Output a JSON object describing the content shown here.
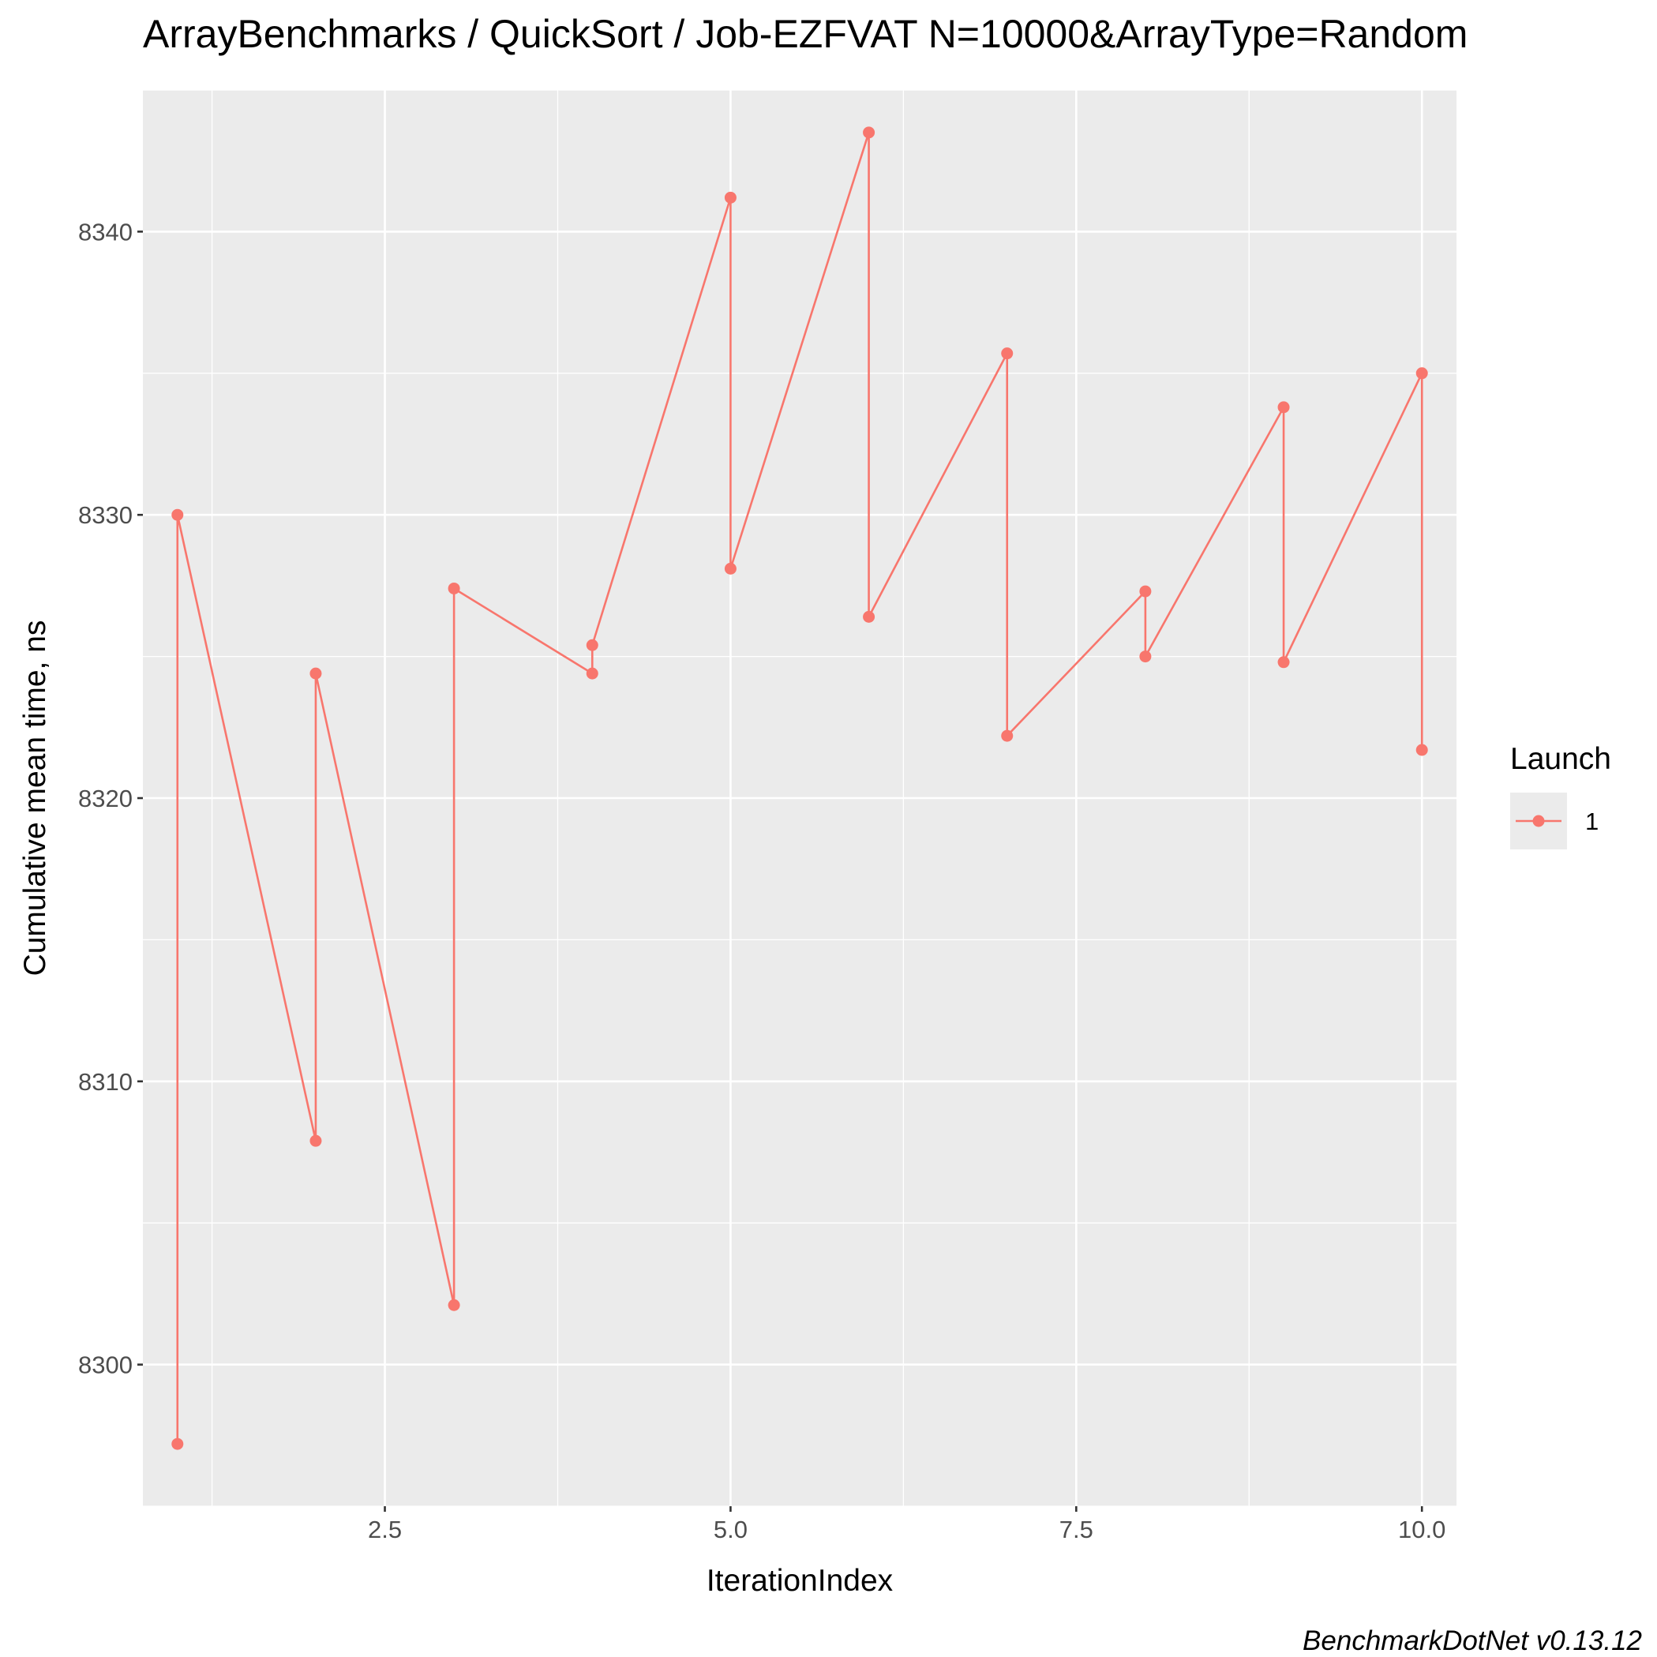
{
  "chart_data": {
    "type": "line",
    "title": "ArrayBenchmarks / QuickSort / Job-EZFVAT N=10000&ArrayType=Random",
    "xlabel": "IterationIndex",
    "ylabel": "Cumulative mean time, ns",
    "caption": "BenchmarkDotNet v0.13.12",
    "xlim": [
      0.75,
      10.25
    ],
    "ylim": [
      8295,
      8345
    ],
    "x_ticks": [
      2.5,
      5.0,
      7.5,
      10.0
    ],
    "x_tick_labels": [
      "2.5",
      "5.0",
      "7.5",
      "10.0"
    ],
    "y_ticks": [
      8300,
      8310,
      8320,
      8330,
      8340
    ],
    "y_tick_labels": [
      "8300",
      "8310",
      "8320",
      "8330",
      "8340"
    ],
    "grid": true,
    "legend": {
      "title": "Launch",
      "position": "right"
    },
    "series": [
      {
        "name": "1",
        "color": "#F8766D",
        "points": [
          [
            1,
            8297.2
          ],
          [
            1,
            8330.0
          ],
          [
            2,
            8307.9
          ],
          [
            2,
            8324.4
          ],
          [
            3,
            8302.1
          ],
          [
            3,
            8327.4
          ],
          [
            4,
            8324.4
          ],
          [
            4,
            8325.4
          ],
          [
            5,
            8341.2
          ],
          [
            5,
            8328.1
          ],
          [
            6,
            8343.5
          ],
          [
            6,
            8326.4
          ],
          [
            7,
            8335.7
          ],
          [
            7,
            8322.2
          ],
          [
            8,
            8327.3
          ],
          [
            8,
            8325.0
          ],
          [
            9,
            8333.8
          ],
          [
            9,
            8324.8
          ],
          [
            10,
            8335.0
          ],
          [
            10,
            8321.7
          ]
        ]
      }
    ]
  }
}
